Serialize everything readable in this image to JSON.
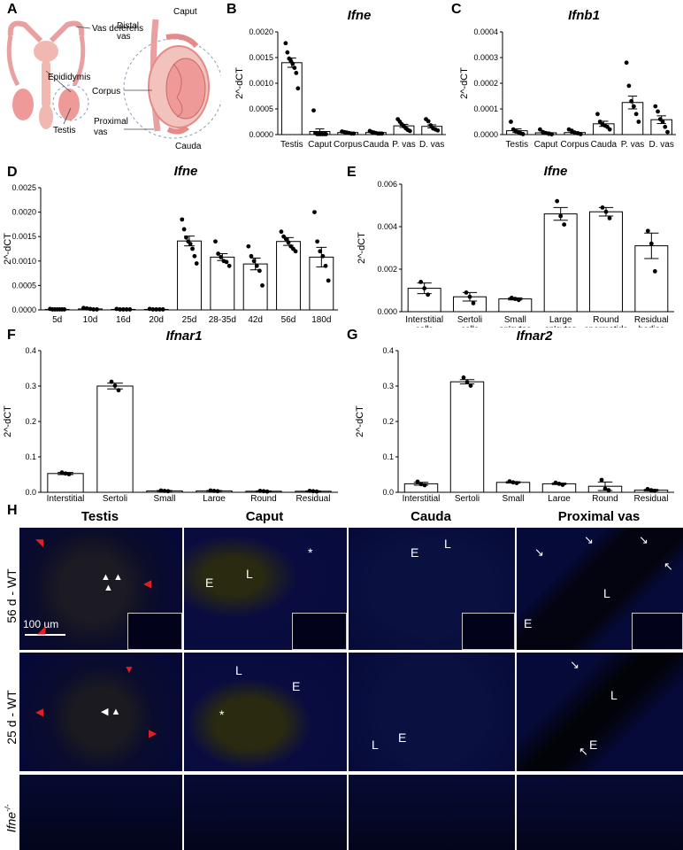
{
  "panel_letters": {
    "a": "A",
    "b": "B",
    "c": "C",
    "d": "D",
    "e": "E",
    "f": "F",
    "g": "G",
    "h": "H"
  },
  "diagram": {
    "vas_deferens": "Vas deferens",
    "epididymis": "Epididymis",
    "testis": "Testis",
    "caput": "Caput",
    "distal_vas_l1": "Distal",
    "distal_vas_l2": "vas",
    "corpus": "Corpus",
    "proximal_vas_l1": "Proximal",
    "proximal_vas_l2": "vas",
    "cauda": "Cauda"
  },
  "chart_data": [
    {
      "id": "B",
      "type": "bar",
      "title": "Ifne",
      "ylabel": "2^-dCT",
      "categories": [
        "Testis",
        "Caput",
        "Corpus",
        "Cauda",
        "P. vas",
        "D. vas"
      ],
      "values": [
        0.0014,
        6e-05,
        4e-05,
        4e-05,
        0.00017,
        0.00016
      ],
      "errors": [
        9e-05,
        5e-05,
        1e-05,
        1e-05,
        3e-05,
        3e-05
      ],
      "points": [
        [
          0.00178,
          0.0016,
          0.00148,
          0.00143,
          0.00138,
          0.0013,
          0.0012,
          0.0009
        ],
        [
          0.00047,
          3e-05,
          1e-05,
          1e-05,
          1e-05,
          1e-05,
          1e-05,
          1e-05
        ],
        [
          6e-05,
          5e-05,
          4e-05,
          3e-05,
          2e-05,
          2e-05
        ],
        [
          7e-05,
          5e-05,
          4e-05,
          3e-05,
          2e-05,
          2e-05,
          2e-05
        ],
        [
          0.0003,
          0.00025,
          0.0002,
          0.00016,
          0.00012,
          9e-05,
          7e-05
        ],
        [
          0.0003,
          0.00026,
          0.00018,
          0.00012,
          0.0001,
          8e-05
        ]
      ],
      "ylim": [
        0,
        0.002
      ],
      "yticks": [
        "0.0000",
        "0.0005",
        "0.0010",
        "0.0015",
        "0.0020"
      ]
    },
    {
      "id": "C",
      "type": "bar",
      "title": "Ifnb1",
      "ylabel": "2^-dCT",
      "categories": [
        "Testis",
        "Caput",
        "Corpus",
        "Cauda",
        "P. vas",
        "D. vas"
      ],
      "values": [
        1.5e-05,
        7e-06,
        8e-06,
        4.2e-05,
        0.000125,
        5.8e-05
      ],
      "errors": [
        7e-06,
        3e-06,
        3e-06,
        1e-05,
        2.5e-05,
        1.5e-05
      ],
      "points": [
        [
          5e-05,
          2e-05,
          1.2e-05,
          1e-05,
          5e-06,
          2e-06
        ],
        [
          2e-05,
          1e-05,
          6e-06,
          3e-06,
          1e-06
        ],
        [
          2e-05,
          1.5e-05,
          8e-06,
          5e-06,
          2e-06
        ],
        [
          8e-05,
          5e-05,
          4e-05,
          3.5e-05,
          3e-05,
          2e-05
        ],
        [
          0.00028,
          0.00019,
          0.00013,
          0.00011,
          8e-05,
          5e-05
        ],
        [
          0.00011,
          9e-05,
          6e-05,
          5e-05,
          3e-05,
          1e-05
        ]
      ],
      "ylim": [
        0,
        0.0004
      ],
      "yticks": [
        "0.0000",
        "0.0001",
        "0.0002",
        "0.0003",
        "0.0004"
      ]
    },
    {
      "id": "D",
      "type": "bar",
      "title": "Ifne",
      "ylabel": "2^-dCT",
      "categories": [
        "5d",
        "10d",
        "16d",
        "20d",
        "25d",
        "28-35d",
        "42d",
        "56d",
        "180d"
      ],
      "values": [
        1e-05,
        2e-05,
        1e-05,
        1e-05,
        0.00141,
        0.00108,
        0.00094,
        0.0014,
        0.00108
      ],
      "errors": [
        5e-06,
        6e-06,
        5e-06,
        5e-06,
        0.0001,
        7e-05,
        0.00012,
        8e-05,
        0.0002
      ],
      "points": [
        [
          2e-05,
          1e-05,
          1e-05,
          1e-05,
          1e-05,
          1e-05,
          1e-05
        ],
        [
          4e-05,
          3e-05,
          2e-05,
          1e-05,
          1e-05
        ],
        [
          2e-05,
          1e-05,
          1e-05,
          1e-05,
          1e-05
        ],
        [
          2e-05,
          1e-05,
          1e-05,
          1e-05,
          1e-05
        ],
        [
          0.00185,
          0.00165,
          0.00148,
          0.0014,
          0.00135,
          0.00125,
          0.0011,
          0.00095
        ],
        [
          0.0014,
          0.00115,
          0.00108,
          0.001,
          0.00098,
          0.0009
        ],
        [
          0.0013,
          0.0011,
          0.001,
          0.0009,
          0.0008,
          0.0005
        ],
        [
          0.0016,
          0.0015,
          0.00145,
          0.00138,
          0.0013,
          0.00125,
          0.0012
        ],
        [
          0.002,
          0.0014,
          0.0012,
          0.0011,
          0.0009,
          0.0006
        ]
      ],
      "ylim": [
        0,
        0.0025
      ],
      "yticks": [
        "0.0000",
        "0.0005",
        "0.0010",
        "0.0015",
        "0.0020",
        "0.0025"
      ]
    },
    {
      "id": "E",
      "type": "bar",
      "title": "Ifne",
      "ylabel": "2^-dCT",
      "categories": [
        "Interstitial\ncells",
        "Sertoli\ncells",
        "Small\nsp'cytes",
        "Large\nsp'cytes",
        "Round\nspermatids",
        "Residual\nbodies"
      ],
      "values": [
        0.0011,
        0.0007,
        0.0006,
        0.0046,
        0.0047,
        0.0031
      ],
      "errors": [
        0.00025,
        0.0002,
        5e-05,
        0.0003,
        0.0002,
        0.0006
      ],
      "points": [
        [
          0.0014,
          0.0011,
          0.0008
        ],
        [
          0.0009,
          0.0007,
          0.0004
        ],
        [
          0.00065,
          0.0006,
          0.00055
        ],
        [
          0.0052,
          0.0045,
          0.0041
        ],
        [
          0.0049,
          0.0047,
          0.0044
        ],
        [
          0.0038,
          0.0032,
          0.0019
        ]
      ],
      "ylim": [
        0,
        0.006
      ],
      "yticks": [
        "0.000",
        "0.002",
        "0.004",
        "0.006"
      ]
    },
    {
      "id": "F",
      "type": "bar",
      "title": "Ifnar1",
      "ylabel": "2^-dCT",
      "categories": [
        "Interstitial\ncells",
        "Sertoli\ncells",
        "Small\nsp'cytes",
        "Large\nsp'cytes",
        "Round\nspermatids",
        "Residual\nbodies"
      ],
      "values": [
        0.053,
        0.3,
        0.004,
        0.004,
        0.003,
        0.003
      ],
      "errors": [
        0.003,
        0.008,
        0.001,
        0.001,
        0.001,
        0.001
      ],
      "points": [
        [
          0.056,
          0.053,
          0.051
        ],
        [
          0.312,
          0.301,
          0.288
        ],
        [
          0.005,
          0.004,
          0.003
        ],
        [
          0.005,
          0.004,
          0.003
        ],
        [
          0.004,
          0.003,
          0.002
        ],
        [
          0.004,
          0.003,
          0.002
        ]
      ],
      "ylim": [
        0,
        0.4
      ],
      "yticks": [
        "0.0",
        "0.1",
        "0.2",
        "0.3",
        "0.4"
      ]
    },
    {
      "id": "G",
      "type": "bar",
      "title": "Ifnar2",
      "ylabel": "2^-dCT",
      "categories": [
        "Interstitial\ncells",
        "Sertoli\ncells",
        "Small\nsp'cytes",
        "Large\nsp'cytes",
        "Round\nspermatids",
        "Residual\nbodies"
      ],
      "values": [
        0.024,
        0.312,
        0.028,
        0.024,
        0.017,
        0.006
      ],
      "errors": [
        0.004,
        0.006,
        0.002,
        0.002,
        0.012,
        0.002
      ],
      "points": [
        [
          0.03,
          0.023,
          0.02
        ],
        [
          0.324,
          0.311,
          0.301
        ],
        [
          0.031,
          0.028,
          0.026
        ],
        [
          0.027,
          0.024,
          0.021
        ],
        [
          0.035,
          0.01,
          0.006
        ],
        [
          0.009,
          0.006,
          0.004
        ]
      ],
      "ylim": [
        0,
        0.4
      ],
      "yticks": [
        "0.0",
        "0.1",
        "0.2",
        "0.3",
        "0.4"
      ]
    }
  ],
  "micrographs": {
    "col_titles": [
      "Testis",
      "Caput",
      "Cauda",
      "Proximal vas"
    ],
    "row_labels": [
      "56 d - WT",
      "25 d - WT"
    ],
    "ko_label": "Ifne",
    "ko_sup": "-/-",
    "scale_bar": "100 µm",
    "markers": {
      "E": "E",
      "L": "L",
      "star": "*"
    }
  }
}
